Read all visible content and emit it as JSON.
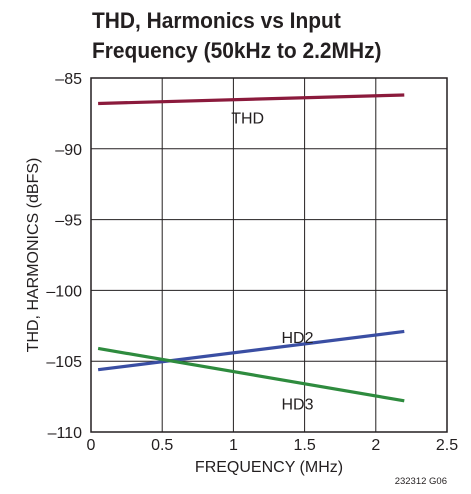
{
  "title": {
    "line1": "THD, Harmonics vs Input",
    "line2": "Frequency (50kHz to 2.2MHz)"
  },
  "chart_data": {
    "type": "line",
    "xlabel": "FREQUENCY (MHz)",
    "ylabel": "THD, HARMONICS (dBFS)",
    "xlim": [
      0,
      2.5
    ],
    "ylim": [
      -110,
      -85
    ],
    "xticks": [
      0,
      0.5,
      1,
      1.5,
      2,
      2.5
    ],
    "xtick_labels": [
      "0",
      "0.5",
      "1",
      "1.5",
      "2",
      "2.5"
    ],
    "yticks": [
      -85,
      -90,
      -95,
      -100,
      -105,
      -110
    ],
    "ytick_labels": [
      "–85",
      "–90",
      "–95",
      "–100",
      "–105",
      "–110"
    ],
    "grid": true,
    "series": [
      {
        "name": "THD",
        "color": "#8b1a3c",
        "x": [
          0.05,
          2.2
        ],
        "y": [
          -86.8,
          -86.2
        ],
        "label_at": [
          1.1,
          -87.8
        ]
      },
      {
        "name": "HD2",
        "color": "#3a4ea3",
        "x": [
          0.05,
          2.2
        ],
        "y": [
          -105.6,
          -102.9
        ],
        "label_at": [
          1.45,
          -103.3
        ]
      },
      {
        "name": "HD3",
        "color": "#2e8b3e",
        "x": [
          0.05,
          2.2
        ],
        "y": [
          -104.1,
          -107.8
        ],
        "label_at": [
          1.45,
          -108.0
        ]
      }
    ],
    "figure_id": "232312 G06"
  }
}
